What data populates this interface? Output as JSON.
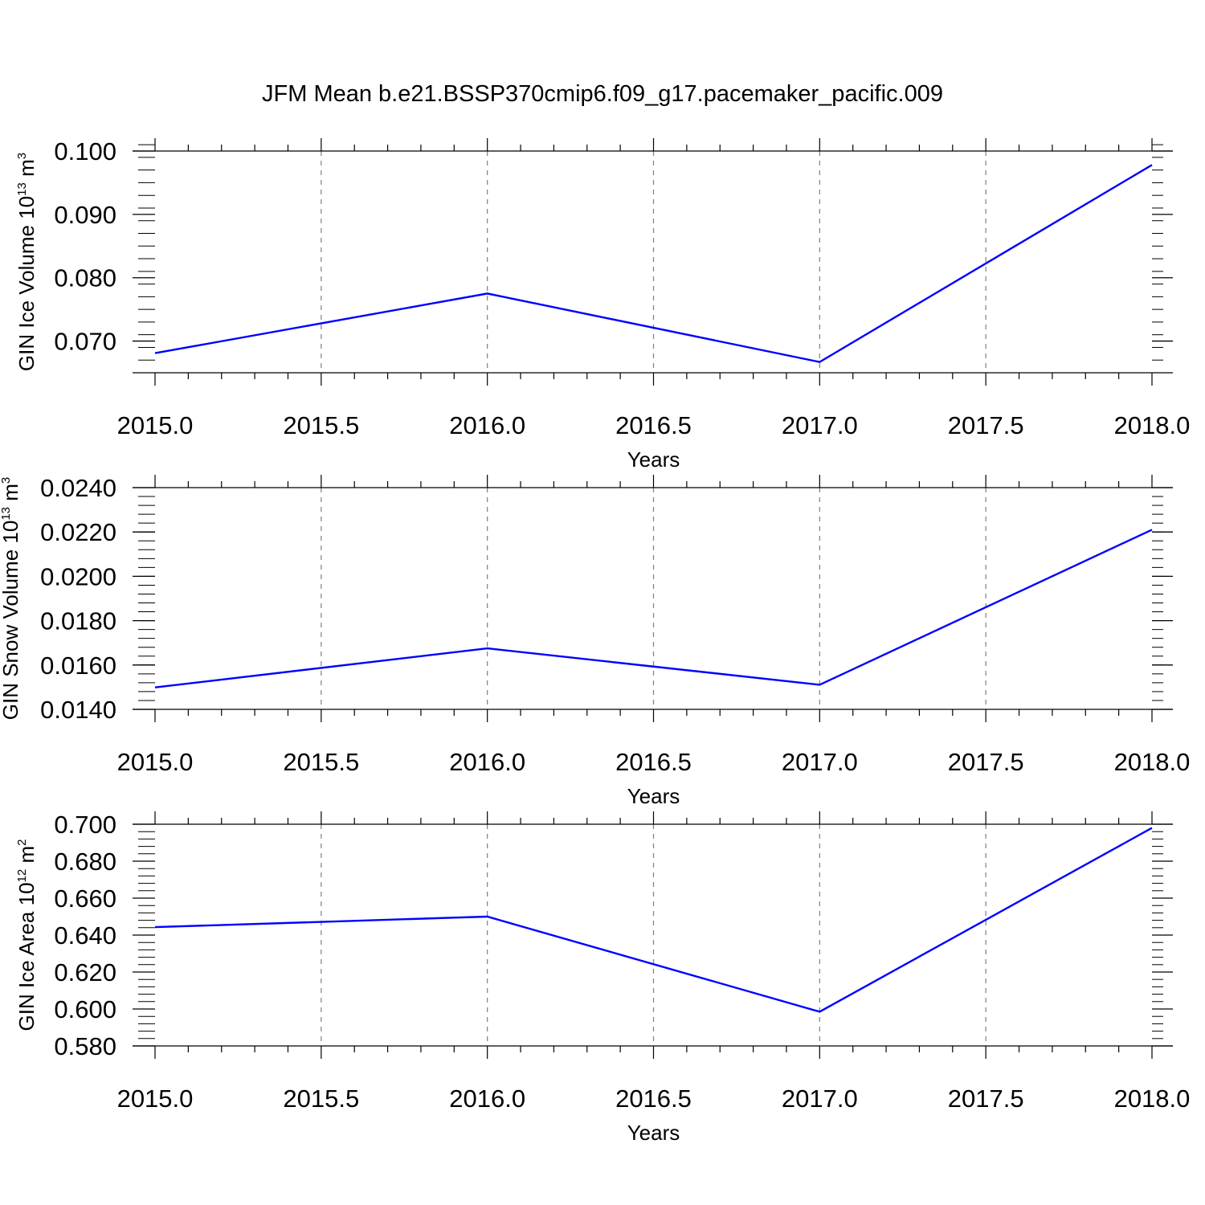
{
  "title": "JFM Mean b.e21.BSSP370cmip6.f09_g17.pacemaker_pacific.009",
  "colors": {
    "line": "#0000ff",
    "axis": "#000000",
    "grid": "#7f7f7f",
    "background": "#ffffff"
  },
  "chart_data": [
    {
      "type": "line",
      "xlabel": "Years",
      "ylabel": {
        "text": "GIN Ice Volume 10",
        "exponent": "13",
        "unit_base": " m",
        "unit_exponent": "3"
      },
      "xlim": [
        2015.0,
        2018.0
      ],
      "ylim": [
        0.065,
        0.1
      ],
      "x_ticks": [
        "2015.0",
        "2015.5",
        "2016.0",
        "2016.5",
        "2017.0",
        "2017.5",
        "2018.0"
      ],
      "x_tick_values": [
        2015.0,
        2015.5,
        2016.0,
        2016.5,
        2017.0,
        2017.5,
        2018.0
      ],
      "y_ticks": [
        "0.070",
        "0.080",
        "0.090",
        "0.100"
      ],
      "y_tick_values": [
        0.07,
        0.08,
        0.09,
        0.1
      ],
      "y_minor_step": 0.002,
      "x_minor_step": 0.1,
      "grid": "vertical dashed at major x ticks",
      "x": [
        2015.0,
        2016.0,
        2017.0,
        2018.0
      ],
      "y": [
        0.0681,
        0.0775,
        0.0667,
        0.0978
      ]
    },
    {
      "type": "line",
      "xlabel": "Years",
      "ylabel": {
        "text": "GIN Snow Volume 10",
        "exponent": "13",
        "unit_base": " m",
        "unit_exponent": "3"
      },
      "xlim": [
        2015.0,
        2018.0
      ],
      "ylim": [
        0.014,
        0.024
      ],
      "x_ticks": [
        "2015.0",
        "2015.5",
        "2016.0",
        "2016.5",
        "2017.0",
        "2017.5",
        "2018.0"
      ],
      "x_tick_values": [
        2015.0,
        2015.5,
        2016.0,
        2016.5,
        2017.0,
        2017.5,
        2018.0
      ],
      "y_ticks": [
        "0.0140",
        "0.0160",
        "0.0180",
        "0.0200",
        "0.0220",
        "0.0240"
      ],
      "y_tick_values": [
        0.014,
        0.016,
        0.018,
        0.02,
        0.022,
        0.024
      ],
      "y_minor_step": 0.0004,
      "x_minor_step": 0.1,
      "grid": "vertical dashed at major x ticks",
      "x": [
        2015.0,
        2016.0,
        2017.0,
        2018.0
      ],
      "y": [
        0.01499,
        0.01675,
        0.01511,
        0.0221
      ]
    },
    {
      "type": "line",
      "xlabel": "Years",
      "ylabel": {
        "text": "GIN Ice Area 10",
        "exponent": "12",
        "unit_base": " m",
        "unit_exponent": "2"
      },
      "xlim": [
        2015.0,
        2018.0
      ],
      "ylim": [
        0.58,
        0.7
      ],
      "x_ticks": [
        "2015.0",
        "2015.5",
        "2016.0",
        "2016.5",
        "2017.0",
        "2017.5",
        "2018.0"
      ],
      "x_tick_values": [
        2015.0,
        2015.5,
        2016.0,
        2016.5,
        2017.0,
        2017.5,
        2018.0
      ],
      "y_ticks": [
        "0.580",
        "0.600",
        "0.620",
        "0.640",
        "0.660",
        "0.680",
        "0.700"
      ],
      "y_tick_values": [
        0.58,
        0.6,
        0.62,
        0.64,
        0.66,
        0.68,
        0.7
      ],
      "y_minor_step": 0.004,
      "x_minor_step": 0.1,
      "grid": "vertical dashed at major x ticks",
      "x": [
        2015.0,
        2016.0,
        2017.0,
        2018.0
      ],
      "y": [
        0.6443,
        0.65,
        0.5985,
        0.698
      ]
    }
  ]
}
